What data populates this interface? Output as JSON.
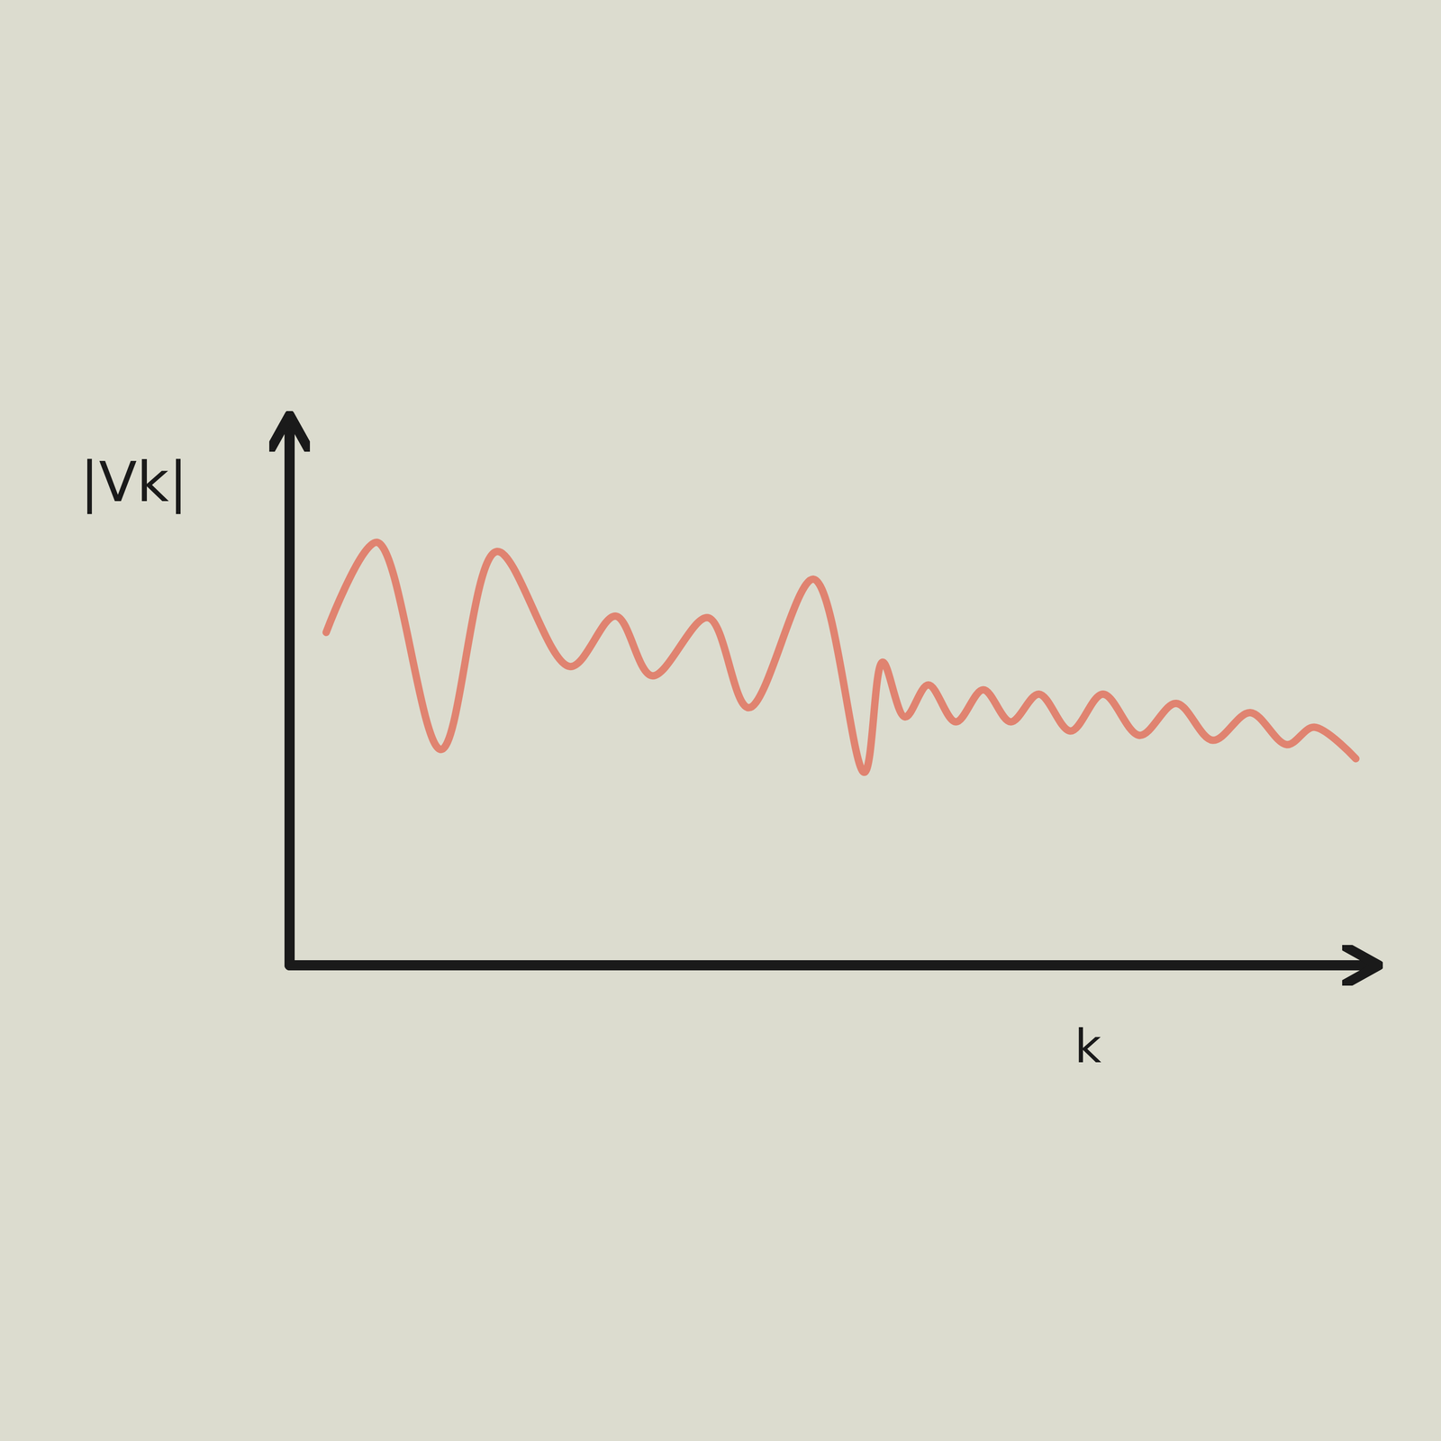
{
  "chart_data": {
    "type": "line",
    "x_label": "k",
    "y_label": "|Vk|",
    "x": [
      4.4,
      10.5,
      18.2,
      24.9,
      33.7,
      39.2,
      43.6,
      50.3,
      55.2,
      63.0,
      69.1,
      71.3,
      74.0,
      76.8,
      80.1,
      83.4,
      86.7,
      90.1,
      93.9,
      97.8,
      102.2,
      106.6,
      111.0,
      115.5,
      119.9,
      123.2,
      128.2
    ],
    "values": [
      61.4,
      78.0,
      39.8,
      76.3,
      55.1,
      64.4,
      53.4,
      64.1,
      47.5,
      71.2,
      35.6,
      55.9,
      45.8,
      51.7,
      44.9,
      50.8,
      44.9,
      50.0,
      43.2,
      50.0,
      42.4,
      48.3,
      41.5,
      46.6,
      40.7,
      43.9,
      38.1
    ],
    "color": "#e0735f",
    "xlim": [
      0,
      130
    ],
    "ylim": [
      0,
      100
    ],
    "tick_labels": false
  }
}
